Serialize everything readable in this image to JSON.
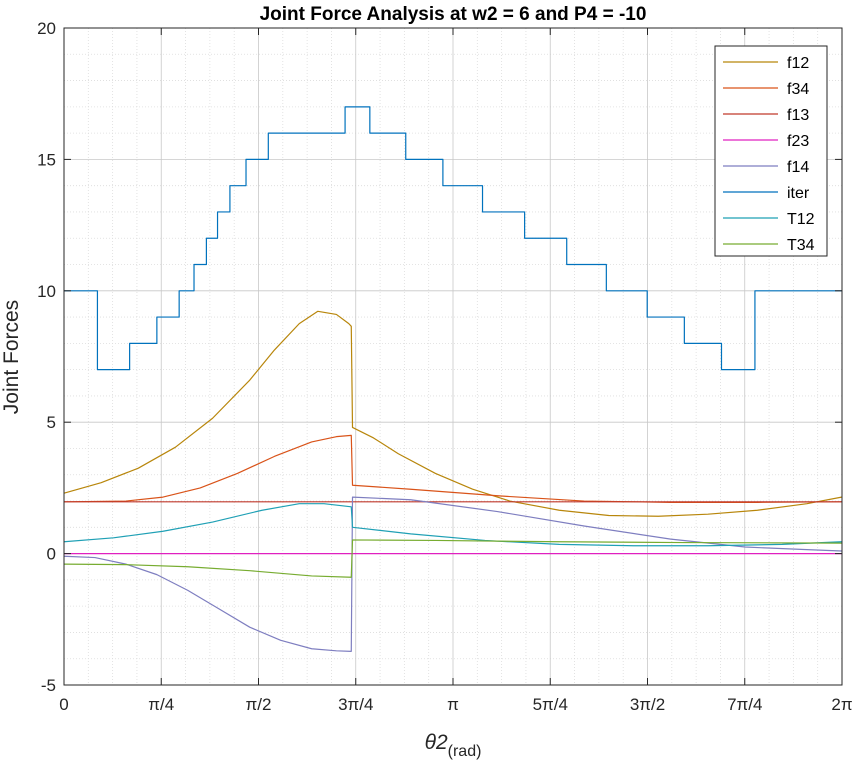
{
  "chart_data": {
    "type": "line",
    "title": "Joint Force Analysis at w2 = 6 and P4 = -10",
    "xlabel_main": "θ2",
    "xlabel_sub": "(rad)",
    "ylabel": "Joint Forces",
    "xlim": [
      0,
      6.2832
    ],
    "ylim": [
      -5,
      20
    ],
    "grid": true,
    "minor_grid": true,
    "legend_position": "top-right",
    "y_ticks": [
      -5,
      0,
      5,
      10,
      15,
      20
    ],
    "y_tick_labels": [
      "-5",
      "0",
      "5",
      "10",
      "15",
      "20"
    ],
    "x_ticks": [
      0,
      0.7854,
      1.5708,
      2.3562,
      3.1416,
      3.927,
      4.7124,
      5.4978,
      6.2832
    ],
    "x_tick_labels": [
      "0",
      "π/4",
      "π/2",
      "3π/4",
      "π",
      "5π/4",
      "3π/2",
      "7π/4",
      "2π"
    ],
    "series": [
      {
        "name": "f12",
        "color": "#b8860b",
        "x": [
          0,
          0.3,
          0.6,
          0.9,
          1.2,
          1.5,
          1.7,
          1.9,
          2.05,
          2.2,
          2.3,
          2.32,
          2.33,
          2.5,
          2.7,
          3.0,
          3.3,
          3.6,
          4.0,
          4.4,
          4.8,
          5.2,
          5.6,
          6.0,
          6.28
        ],
        "y": [
          2.3,
          2.7,
          3.25,
          4.05,
          5.15,
          6.6,
          7.75,
          8.75,
          9.22,
          9.1,
          8.75,
          8.65,
          4.8,
          4.4,
          3.8,
          3.05,
          2.45,
          2.0,
          1.65,
          1.45,
          1.42,
          1.5,
          1.65,
          1.9,
          2.15
        ]
      },
      {
        "name": "f34",
        "color": "#d95319",
        "x": [
          0,
          0.5,
          0.8,
          1.1,
          1.4,
          1.7,
          2.0,
          2.2,
          2.32,
          2.33,
          2.8,
          3.5,
          4.2,
          4.9,
          5.6,
          6.28
        ],
        "y": [
          1.97,
          2.0,
          2.15,
          2.5,
          3.05,
          3.7,
          4.25,
          4.45,
          4.5,
          2.6,
          2.45,
          2.2,
          2.0,
          1.95,
          1.95,
          1.97
        ]
      },
      {
        "name": "f13",
        "color": "#c0392b",
        "x": [
          0,
          6.28
        ],
        "y": [
          1.97,
          1.97
        ]
      },
      {
        "name": "f23",
        "color": "#e020c0",
        "x": [
          0,
          6.28
        ],
        "y": [
          0,
          0
        ]
      },
      {
        "name": "f14",
        "color": "#7e7ec0",
        "x": [
          0,
          0.25,
          0.5,
          0.75,
          1.0,
          1.25,
          1.5,
          1.75,
          2.0,
          2.2,
          2.32,
          2.33,
          2.8,
          3.5,
          4.2,
          4.9,
          5.5,
          6.0,
          6.28
        ],
        "y": [
          -0.1,
          -0.15,
          -0.4,
          -0.8,
          -1.4,
          -2.1,
          -2.8,
          -3.3,
          -3.62,
          -3.7,
          -3.72,
          2.15,
          2.05,
          1.6,
          1.05,
          0.55,
          0.25,
          0.15,
          0.1
        ]
      },
      {
        "name": "iter",
        "color": "#0072bd",
        "step": true,
        "x": [
          0,
          0.27,
          0.53,
          0.75,
          0.93,
          1.05,
          1.15,
          1.24,
          1.34,
          1.47,
          1.65,
          1.97,
          2.27,
          2.47,
          2.76,
          3.06,
          3.38,
          3.72,
          4.06,
          4.38,
          4.71,
          5.01,
          5.31,
          5.58,
          6.02,
          6.2832
        ],
        "y": [
          10,
          7,
          8,
          9,
          10,
          11,
          12,
          13,
          14,
          15,
          16,
          16,
          17,
          16,
          15,
          14,
          13,
          12,
          11,
          10,
          9,
          8,
          7,
          10,
          10,
          10
        ]
      },
      {
        "name": "T12",
        "color": "#1fa0b5",
        "x": [
          0,
          0.4,
          0.8,
          1.2,
          1.6,
          1.9,
          2.1,
          2.32,
          2.33,
          2.8,
          3.4,
          4.0,
          4.6,
          5.2,
          5.8,
          6.28
        ],
        "y": [
          0.45,
          0.6,
          0.85,
          1.2,
          1.65,
          1.9,
          1.9,
          1.78,
          1.0,
          0.75,
          0.5,
          0.35,
          0.3,
          0.3,
          0.35,
          0.45
        ]
      },
      {
        "name": "T34",
        "color": "#77ac30",
        "x": [
          0,
          0.5,
          1.0,
          1.5,
          2.0,
          2.32,
          2.33,
          3.0,
          4.0,
          5.0,
          6.28
        ],
        "y": [
          -0.4,
          -0.42,
          -0.5,
          -0.65,
          -0.85,
          -0.9,
          0.52,
          0.5,
          0.45,
          0.42,
          0.4
        ]
      }
    ]
  }
}
